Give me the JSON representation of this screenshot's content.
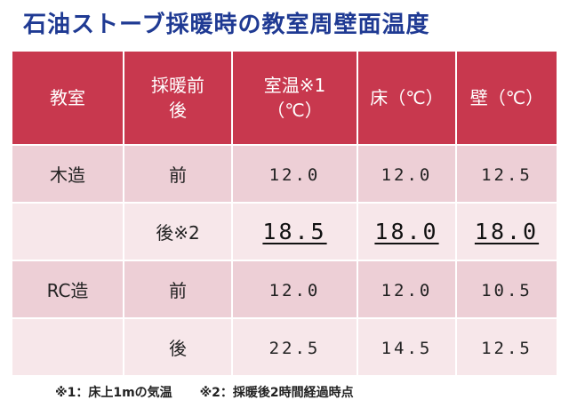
{
  "title": "石油ストーブ採暖時の教室周壁面温度",
  "table": {
    "headers": [
      [
        "教室"
      ],
      [
        "採暖前",
        "後"
      ],
      [
        "室温※1",
        "（℃）"
      ],
      [
        "床（℃）"
      ],
      [
        "壁（℃）"
      ]
    ],
    "rows": [
      {
        "room": "木造",
        "timing": "前",
        "room_temp": "12.0",
        "floor": "12.0",
        "wall": "12.5"
      },
      {
        "room": "",
        "timing": "後※2",
        "room_temp": "18.5",
        "floor": "18.0",
        "wall": "18.0"
      },
      {
        "room": "RC造",
        "timing": "前",
        "room_temp": "12.0",
        "floor": "12.0",
        "wall": "10.5"
      },
      {
        "room": "",
        "timing": "後",
        "room_temp": "22.5",
        "floor": "14.5",
        "wall": "12.5"
      }
    ]
  },
  "footnotes": [
    "※1：床上1mの気温",
    "※2：採暖後2時間経過時点"
  ],
  "colors": {
    "title": "#1f3a93",
    "header_bg": "#c8384e",
    "row_dark": "#edcfd6",
    "row_light": "#f7e7ea"
  }
}
